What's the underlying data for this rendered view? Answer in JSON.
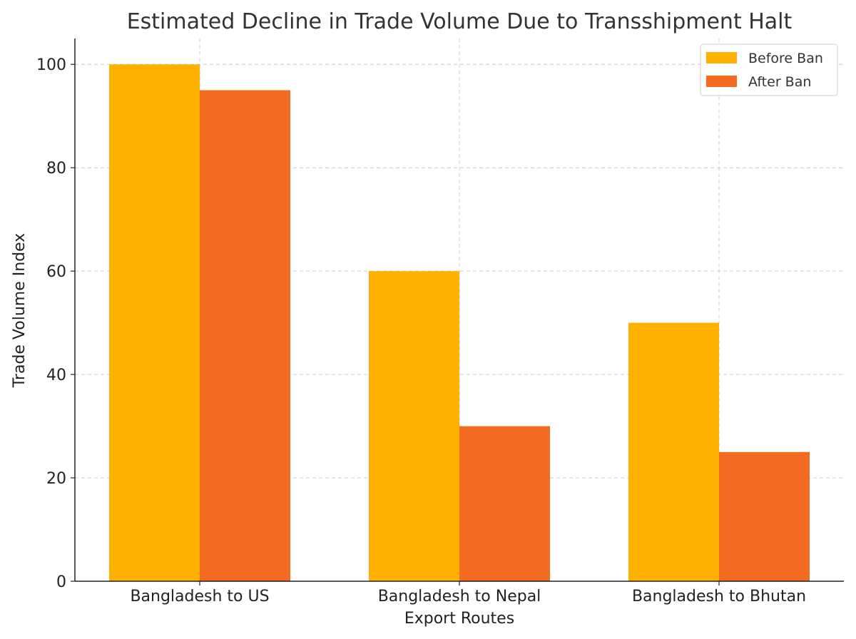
{
  "chart_data": {
    "type": "bar",
    "title": "Estimated Decline in Trade Volume Due to Transshipment Halt",
    "xlabel": "Export Routes",
    "ylabel": "Trade Volume Index",
    "categories": [
      "Bangladesh to US",
      "Bangladesh to Nepal",
      "Bangladesh to Bhutan"
    ],
    "series": [
      {
        "name": "Before Ban",
        "values": [
          100,
          60,
          50
        ],
        "color": "#FFB000"
      },
      {
        "name": "After Ban",
        "values": [
          95,
          30,
          25
        ],
        "color": "#F26B21"
      }
    ],
    "ylim": [
      0,
      105
    ],
    "yticks": [
      0,
      20,
      40,
      60,
      80,
      100
    ],
    "grid": true,
    "legend_position": "top-right"
  }
}
